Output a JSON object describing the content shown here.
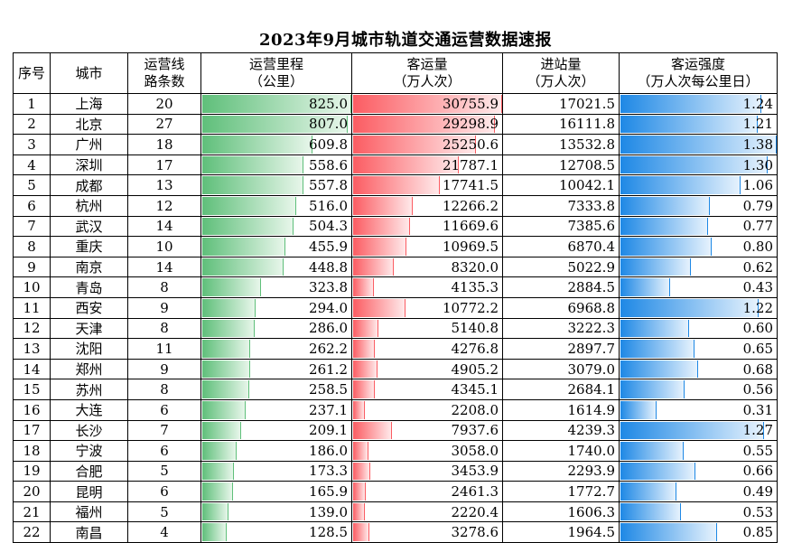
{
  "title": "2023年9月城市轨道交通运营数据速报",
  "headers": {
    "idx": "序号",
    "city": "城市",
    "lines_1": "运营线",
    "lines_2": "路条数",
    "mileage_1": "运营里程",
    "mileage_2": "（公里）",
    "volume_1": "客运量",
    "volume_2": "（万人次）",
    "entries_1": "进站量",
    "entries_2": "（万人次）",
    "intensity_1": "客运强度",
    "intensity_2": "（万人次每公里日）"
  },
  "colors": {
    "mileage": "#5fbf7a",
    "volume": "#fb5c62",
    "intensity": "#1e88e5"
  },
  "bar_max": {
    "mileage": 825.0,
    "volume": 30755.9,
    "intensity": 1.38
  },
  "rows": [
    {
      "idx": "1",
      "city": "上海",
      "lines": "20",
      "mileage": "825.0",
      "volume": "30755.9",
      "entries": "17021.5",
      "intensity": "1.24"
    },
    {
      "idx": "2",
      "city": "北京",
      "lines": "27",
      "mileage": "807.0",
      "volume": "29298.9",
      "entries": "16111.8",
      "intensity": "1.21"
    },
    {
      "idx": "3",
      "city": "广州",
      "lines": "18",
      "mileage": "609.8",
      "volume": "25250.6",
      "entries": "13532.8",
      "intensity": "1.38"
    },
    {
      "idx": "4",
      "city": "深圳",
      "lines": "17",
      "mileage": "558.6",
      "volume": "21787.1",
      "entries": "12708.5",
      "intensity": "1.30"
    },
    {
      "idx": "5",
      "city": "成都",
      "lines": "13",
      "mileage": "557.8",
      "volume": "17741.5",
      "entries": "10042.1",
      "intensity": "1.06"
    },
    {
      "idx": "6",
      "city": "杭州",
      "lines": "12",
      "mileage": "516.0",
      "volume": "12266.2",
      "entries": "7333.8",
      "intensity": "0.79"
    },
    {
      "idx": "7",
      "city": "武汉",
      "lines": "14",
      "mileage": "504.3",
      "volume": "11669.6",
      "entries": "7385.6",
      "intensity": "0.77"
    },
    {
      "idx": "8",
      "city": "重庆",
      "lines": "10",
      "mileage": "455.9",
      "volume": "10969.5",
      "entries": "6870.4",
      "intensity": "0.80"
    },
    {
      "idx": "9",
      "city": "南京",
      "lines": "14",
      "mileage": "448.8",
      "volume": "8320.0",
      "entries": "5022.9",
      "intensity": "0.62"
    },
    {
      "idx": "10",
      "city": "青岛",
      "lines": "8",
      "mileage": "323.8",
      "volume": "4135.3",
      "entries": "2884.5",
      "intensity": "0.43"
    },
    {
      "idx": "11",
      "city": "西安",
      "lines": "9",
      "mileage": "294.0",
      "volume": "10772.2",
      "entries": "6968.8",
      "intensity": "1.22"
    },
    {
      "idx": "12",
      "city": "天津",
      "lines": "8",
      "mileage": "286.0",
      "volume": "5140.8",
      "entries": "3222.3",
      "intensity": "0.60"
    },
    {
      "idx": "13",
      "city": "沈阳",
      "lines": "11",
      "mileage": "262.2",
      "volume": "4276.8",
      "entries": "2897.7",
      "intensity": "0.65"
    },
    {
      "idx": "14",
      "city": "郑州",
      "lines": "9",
      "mileage": "261.2",
      "volume": "4905.2",
      "entries": "3079.0",
      "intensity": "0.68"
    },
    {
      "idx": "15",
      "city": "苏州",
      "lines": "8",
      "mileage": "258.5",
      "volume": "4345.1",
      "entries": "2684.1",
      "intensity": "0.56"
    },
    {
      "idx": "16",
      "city": "大连",
      "lines": "6",
      "mileage": "237.1",
      "volume": "2208.0",
      "entries": "1614.9",
      "intensity": "0.31"
    },
    {
      "idx": "17",
      "city": "长沙",
      "lines": "7",
      "mileage": "209.1",
      "volume": "7937.6",
      "entries": "4239.3",
      "intensity": "1.27"
    },
    {
      "idx": "18",
      "city": "宁波",
      "lines": "6",
      "mileage": "186.0",
      "volume": "3058.0",
      "entries": "1740.0",
      "intensity": "0.55"
    },
    {
      "idx": "19",
      "city": "合肥",
      "lines": "5",
      "mileage": "173.3",
      "volume": "3453.9",
      "entries": "2293.9",
      "intensity": "0.66"
    },
    {
      "idx": "20",
      "city": "昆明",
      "lines": "6",
      "mileage": "165.9",
      "volume": "2461.3",
      "entries": "1772.7",
      "intensity": "0.49"
    },
    {
      "idx": "21",
      "city": "福州",
      "lines": "5",
      "mileage": "139.0",
      "volume": "2220.4",
      "entries": "1606.3",
      "intensity": "0.53"
    },
    {
      "idx": "22",
      "city": "南昌",
      "lines": "4",
      "mileage": "128.5",
      "volume": "3278.6",
      "entries": "1964.5",
      "intensity": "0.85"
    }
  ]
}
